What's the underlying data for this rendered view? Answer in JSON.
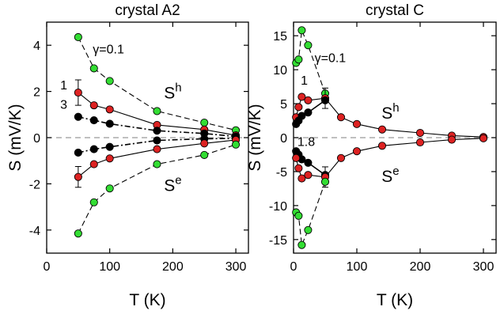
{
  "chart_data": [
    {
      "type": "line",
      "title": "crystal A2",
      "xlabel": "T (K)",
      "ylabel": "S (mV/K)",
      "xlim": [
        0,
        320
      ],
      "ylim": [
        -5,
        5
      ],
      "xticks": [
        0,
        100,
        200,
        300
      ],
      "xtick_labels": [
        "0",
        "100",
        "200",
        "300"
      ],
      "yticks": [
        -4,
        -2,
        0,
        2,
        4
      ],
      "ytick_labels": [
        "-4",
        "-2",
        "0",
        "2",
        "4"
      ],
      "zero_line": "dashed grey at S=0",
      "series": [
        {
          "name": "γ=0.1 hole",
          "color": "#33dd33",
          "line": "dashed",
          "points": [
            [
              50,
              4.35
            ],
            [
              75,
              3.0
            ],
            [
              100,
              2.45
            ],
            [
              175,
              1.15
            ],
            [
              250,
              0.65
            ],
            [
              300,
              0.32
            ]
          ]
        },
        {
          "name": "γ=1 hole",
          "color": "#dd2222",
          "line": "solid",
          "points": [
            [
              50,
              1.95
            ],
            [
              75,
              1.4
            ],
            [
              100,
              1.22
            ],
            [
              175,
              0.55
            ],
            [
              250,
              0.35
            ],
            [
              300,
              0.1
            ]
          ],
          "error": {
            "x": 50,
            "y": 1.95,
            "err": 0.55
          }
        },
        {
          "name": "γ=3 hole",
          "color": "#000000",
          "line": "dash-dot",
          "points": [
            [
              50,
              0.9
            ],
            [
              75,
              0.75
            ],
            [
              100,
              0.6
            ],
            [
              175,
              0.3
            ],
            [
              250,
              0.18
            ],
            [
              300,
              0.05
            ]
          ]
        },
        {
          "name": "γ=3 electron",
          "color": "#000000",
          "line": "dash-dot",
          "points": [
            [
              50,
              -0.65
            ],
            [
              75,
              -0.5
            ],
            [
              100,
              -0.4
            ],
            [
              175,
              -0.12
            ],
            [
              250,
              -0.05
            ],
            [
              300,
              -0.03
            ]
          ]
        },
        {
          "name": "γ=1 electron",
          "color": "#dd2222",
          "line": "solid",
          "points": [
            [
              50,
              -1.7
            ],
            [
              75,
              -1.15
            ],
            [
              100,
              -0.9
            ],
            [
              175,
              -0.5
            ],
            [
              250,
              -0.25
            ],
            [
              300,
              -0.1
            ]
          ],
          "error": {
            "x": 50,
            "y": -1.7,
            "err": 0.45
          }
        },
        {
          "name": "γ=0.1 electron",
          "color": "#33dd33",
          "line": "dashed",
          "points": [
            [
              50,
              -4.15
            ],
            [
              75,
              -2.8
            ],
            [
              100,
              -2.2
            ],
            [
              175,
              -1.15
            ],
            [
              250,
              -0.75
            ],
            [
              300,
              -0.3
            ]
          ]
        }
      ],
      "annotations": [
        {
          "text": "γ=0.1",
          "x": 98,
          "y": 3.85
        },
        {
          "text": "1",
          "x": 27,
          "y": 2.3
        },
        {
          "text": "3",
          "x": 27,
          "y": 1.45
        },
        {
          "text": "S",
          "sup": "h",
          "x": 200,
          "y": 1.9
        },
        {
          "text": "S",
          "sup": "e",
          "x": 200,
          "y": -2.1
        }
      ]
    },
    {
      "type": "line",
      "title": "crystal C",
      "xlabel": "T (K)",
      "ylabel": "S (mV/K)",
      "xlim": [
        0,
        320
      ],
      "ylim": [
        -17,
        17
      ],
      "xticks": [
        0,
        100,
        200,
        300
      ],
      "xtick_labels": [
        "0",
        "100",
        "200",
        "300"
      ],
      "yticks": [
        -15,
        -10,
        -5,
        0,
        5,
        10,
        15
      ],
      "ytick_labels": [
        "-15",
        "-10",
        "-5",
        "0",
        "5",
        "10",
        "15"
      ],
      "zero_line": "dashed grey at S=0",
      "series": [
        {
          "name": "γ=0.1 hole",
          "color": "#33dd33",
          "line": "dashed",
          "points": [
            [
              4,
              11.0
            ],
            [
              8,
              11.5
            ],
            [
              13,
              15.8
            ],
            [
              23,
              13.6
            ],
            [
              50,
              6.5
            ]
          ]
        },
        {
          "name": "γ=1 hole",
          "color": "#dd2222",
          "line": "solid",
          "points": [
            [
              4,
              3.0
            ],
            [
              8,
              4.5
            ],
            [
              13,
              6.0
            ],
            [
              23,
              5.5
            ],
            [
              50,
              5.8
            ],
            [
              75,
              3.0
            ],
            [
              100,
              2.0
            ],
            [
              140,
              1.2
            ],
            [
              200,
              0.7
            ],
            [
              250,
              0.3
            ],
            [
              300,
              0.1
            ]
          ],
          "error": {
            "x": 50,
            "y": 5.8,
            "err": 1.5
          }
        },
        {
          "name": "γ=1.8 hole",
          "color": "#000000",
          "line": "solid",
          "points": [
            [
              4,
              2.0
            ],
            [
              8,
              2.5
            ],
            [
              13,
              3.2
            ],
            [
              23,
              3.7
            ],
            [
              50,
              5.5
            ]
          ]
        },
        {
          "name": "γ=1.8 electron",
          "color": "#000000",
          "line": "solid",
          "points": [
            [
              4,
              -2.0
            ],
            [
              8,
              -2.5
            ],
            [
              13,
              -3.2
            ],
            [
              23,
              -3.7
            ],
            [
              50,
              -5.5
            ]
          ]
        },
        {
          "name": "γ=1 electron",
          "color": "#dd2222",
          "line": "solid",
          "points": [
            [
              4,
              -3.0
            ],
            [
              8,
              -4.5
            ],
            [
              13,
              -6.0
            ],
            [
              23,
              -5.5
            ],
            [
              50,
              -5.8
            ],
            [
              75,
              -3.0
            ],
            [
              100,
              -2.0
            ],
            [
              140,
              -1.2
            ],
            [
              200,
              -0.7
            ],
            [
              250,
              -0.3
            ],
            [
              300,
              -0.1
            ]
          ],
          "error": {
            "x": 50,
            "y": -5.8,
            "err": 1.5
          }
        },
        {
          "name": "γ=0.1 electron",
          "color": "#33dd33",
          "line": "dashed",
          "points": [
            [
              4,
              -11.0
            ],
            [
              8,
              -11.5
            ],
            [
              13,
              -15.8
            ],
            [
              23,
              -13.6
            ],
            [
              50,
              -6.5
            ]
          ]
        }
      ],
      "annotations": [
        {
          "text": "γ=0.1",
          "x": 58,
          "y": 11.8
        },
        {
          "text": "1",
          "x": 17,
          "y": 8.5
        },
        {
          "text": "1.8",
          "x": 20,
          "y": -0.5
        },
        {
          "text": "S",
          "sup": "h",
          "x": 153,
          "y": 3.5
        },
        {
          "text": "S",
          "sup": "e",
          "x": 153,
          "y": -5.8
        }
      ]
    }
  ]
}
